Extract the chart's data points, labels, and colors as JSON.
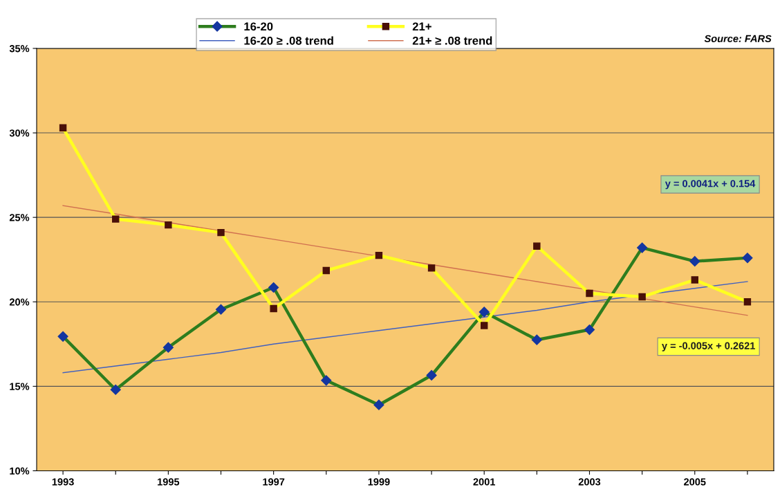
{
  "chart_data": {
    "type": "line",
    "x": [
      1993,
      1994,
      1995,
      1996,
      1997,
      1998,
      1999,
      2000,
      2001,
      2002,
      2003,
      2004,
      2005,
      2006
    ],
    "series": [
      {
        "name": "16-20",
        "color": "#2e7d1e",
        "marker": "diamond",
        "values": [
          17.95,
          14.8,
          17.3,
          19.55,
          20.85,
          15.35,
          13.9,
          15.65,
          19.4,
          17.75,
          18.35,
          23.2,
          22.4,
          22.6
        ]
      },
      {
        "name": "21+",
        "color": "#ffff20",
        "marker": "square",
        "values": [
          30.3,
          24.9,
          24.55,
          24.1,
          19.6,
          21.85,
          22.75,
          22.0,
          18.6,
          23.3,
          20.5,
          20.3,
          21.3,
          20.0
        ]
      },
      {
        "name": "16-20 ≥ .08 trend",
        "color": "#4060c0",
        "marker": "none",
        "values": [
          15.8,
          16.2,
          16.6,
          17.0,
          17.5,
          17.9,
          18.3,
          18.7,
          19.1,
          19.5,
          20.0,
          20.4,
          20.8,
          21.2
        ]
      },
      {
        "name": "21+ ≥ .08 trend",
        "color": "#d07050",
        "marker": "none",
        "values": [
          25.7,
          25.2,
          24.7,
          24.2,
          23.7,
          23.2,
          22.7,
          22.2,
          21.7,
          21.2,
          20.7,
          20.2,
          19.7,
          19.2
        ]
      }
    ],
    "xlim": [
      1992.5,
      2006.5
    ],
    "xticks": [
      1993,
      {
        "value": 1994,
        "label": null
      },
      1995,
      {
        "value": 1996,
        "label": null
      },
      1997,
      {
        "value": 1998,
        "label": null
      },
      1999,
      {
        "value": 2000,
        "label": null
      },
      2001,
      {
        "value": 2002,
        "label": null
      },
      2003,
      {
        "value": 2004,
        "label": null
      },
      2005,
      {
        "value": 2006,
        "label": null
      }
    ],
    "ylim": [
      10,
      35
    ],
    "yticks": [
      {
        "value": 10,
        "label": "10%"
      },
      {
        "value": 15,
        "label": "15%"
      },
      {
        "value": 20,
        "label": "20%"
      },
      {
        "value": 25,
        "label": "25%"
      },
      {
        "value": 30,
        "label": "30%"
      },
      {
        "value": 35,
        "label": "35%"
      }
    ],
    "grid": "y",
    "legend": "top",
    "annotations": [
      "Source: FARS",
      "y = 0.0041x + 0.154",
      "y = -0.005x + 0.2621"
    ]
  }
}
